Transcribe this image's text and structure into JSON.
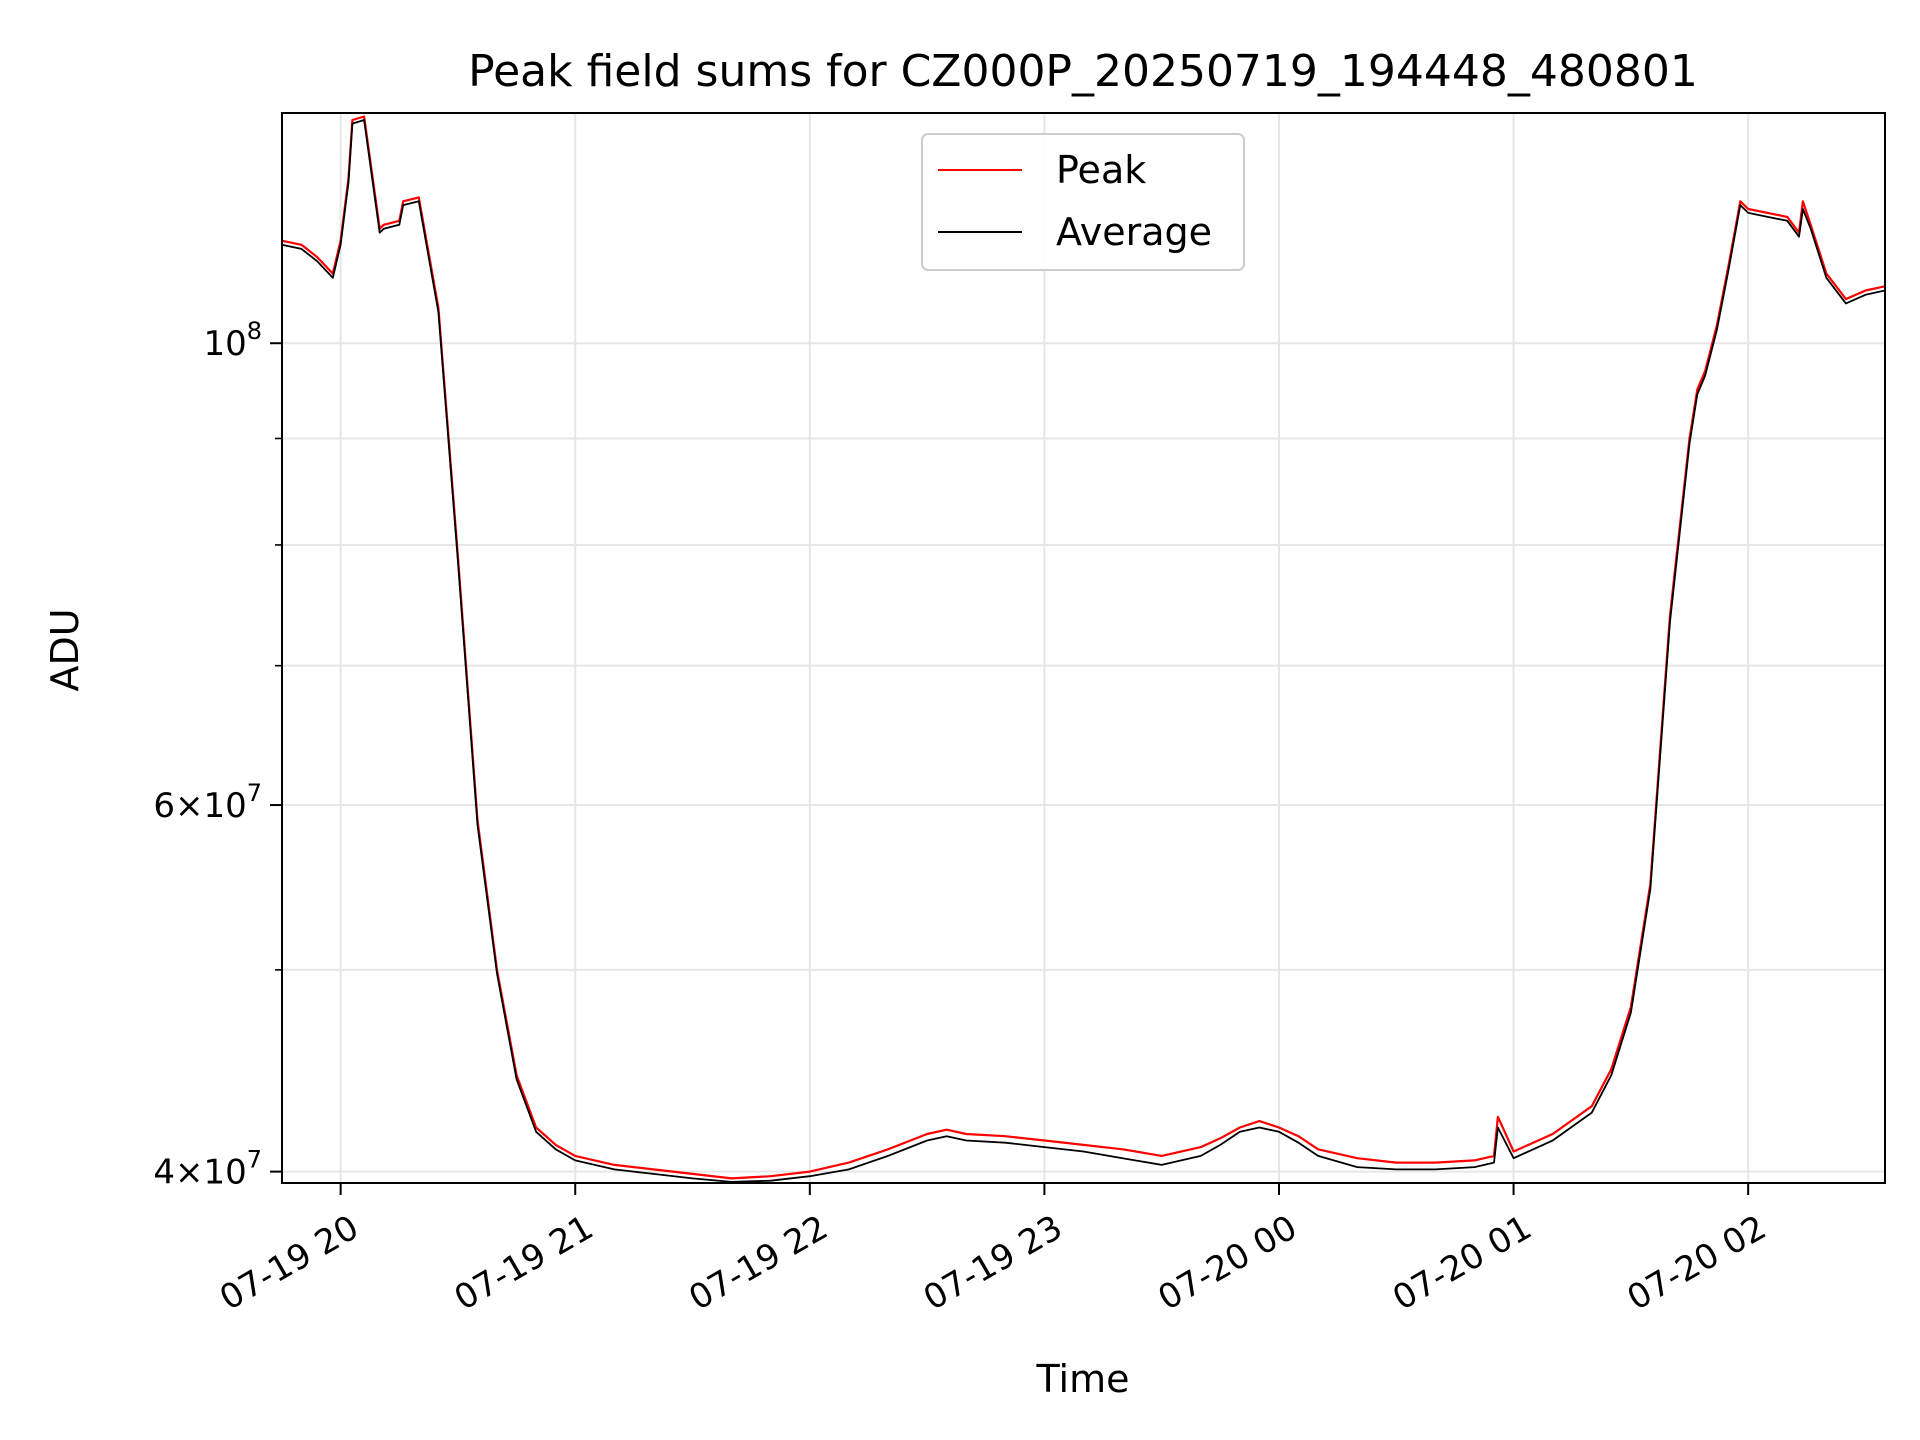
{
  "chart_data": {
    "type": "line",
    "title": "Peak field sums for CZ000P_20250719_194448_480801",
    "xlabel": "Time",
    "ylabel": "ADU",
    "y_scale": "log",
    "xlim": [
      "2025-07-19 19:45",
      "2025-07-20 02:35"
    ],
    "ylim": [
      39500000,
      129000000
    ],
    "grid": true,
    "legend_position": "top-center",
    "x_ticks": [
      {
        "t": "2025-07-19 20:00",
        "label": "07-19 20"
      },
      {
        "t": "2025-07-19 21:00",
        "label": "07-19 21"
      },
      {
        "t": "2025-07-19 22:00",
        "label": "07-19 22"
      },
      {
        "t": "2025-07-19 23:00",
        "label": "07-19 23"
      },
      {
        "t": "2025-07-20 00:00",
        "label": "07-20 00"
      },
      {
        "t": "2025-07-20 01:00",
        "label": "07-20 01"
      },
      {
        "t": "2025-07-20 02:00",
        "label": "07-20 02"
      }
    ],
    "y_major_ticks": [
      {
        "value": 40000000,
        "mant": "4",
        "exp": "7"
      },
      {
        "value": 60000000,
        "mant": "6",
        "exp": "7"
      },
      {
        "value": 100000000,
        "mant": "",
        "exp": "8"
      }
    ],
    "y_minor_ticks": [
      50000000,
      70000000,
      80000000,
      90000000
    ],
    "series": [
      {
        "name": "Peak",
        "color": "#ff0000",
        "x": [
          "2025-07-19 19:45",
          "2025-07-19 19:50",
          "2025-07-19 19:54",
          "2025-07-19 19:58",
          "2025-07-19 20:00",
          "2025-07-19 20:02",
          "2025-07-19 20:03",
          "2025-07-19 20:06",
          "2025-07-19 20:10",
          "2025-07-19 20:11",
          "2025-07-19 20:15",
          "2025-07-19 20:16",
          "2025-07-19 20:20",
          "2025-07-19 20:25",
          "2025-07-19 20:30",
          "2025-07-19 20:35",
          "2025-07-19 20:40",
          "2025-07-19 20:45",
          "2025-07-19 20:50",
          "2025-07-19 20:55",
          "2025-07-19 21:00",
          "2025-07-19 21:10",
          "2025-07-19 21:20",
          "2025-07-19 21:30",
          "2025-07-19 21:40",
          "2025-07-19 21:50",
          "2025-07-19 22:00",
          "2025-07-19 22:10",
          "2025-07-19 22:20",
          "2025-07-19 22:30",
          "2025-07-19 22:35",
          "2025-07-19 22:40",
          "2025-07-19 22:50",
          "2025-07-19 23:00",
          "2025-07-19 23:10",
          "2025-07-19 23:20",
          "2025-07-19 23:30",
          "2025-07-19 23:40",
          "2025-07-19 23:45",
          "2025-07-19 23:50",
          "2025-07-19 23:55",
          "2025-07-20 00:00",
          "2025-07-20 00:05",
          "2025-07-20 00:10",
          "2025-07-20 00:20",
          "2025-07-20 00:30",
          "2025-07-20 00:40",
          "2025-07-20 00:50",
          "2025-07-20 00:55",
          "2025-07-20 00:56",
          "2025-07-20 01:00",
          "2025-07-20 01:10",
          "2025-07-20 01:20",
          "2025-07-20 01:25",
          "2025-07-20 01:30",
          "2025-07-20 01:35",
          "2025-07-20 01:40",
          "2025-07-20 01:45",
          "2025-07-20 01:47",
          "2025-07-20 01:49",
          "2025-07-20 01:52",
          "2025-07-20 01:55",
          "2025-07-20 01:58",
          "2025-07-20 02:00",
          "2025-07-20 02:05",
          "2025-07-20 02:10",
          "2025-07-20 02:13",
          "2025-07-20 02:14",
          "2025-07-20 02:16",
          "2025-07-20 02:20",
          "2025-07-20 02:25",
          "2025-07-20 02:30",
          "2025-07-20 02:35"
        ],
        "values": [
          112000000,
          111500000,
          110000000,
          108000000,
          112000000,
          120000000,
          128000000,
          128500000,
          113500000,
          114000000,
          114500000,
          117000000,
          117500000,
          104000000,
          79000000,
          59000000,
          50000000,
          44500000,
          42000000,
          41200000,
          40700000,
          40300000,
          40100000,
          39900000,
          39700000,
          39800000,
          40000000,
          40400000,
          41000000,
          41700000,
          41900000,
          41700000,
          41600000,
          41400000,
          41200000,
          41000000,
          40700000,
          41100000,
          41500000,
          42000000,
          42300000,
          42000000,
          41600000,
          41000000,
          40600000,
          40400000,
          40400000,
          40500000,
          40700000,
          42500000,
          40900000,
          41700000,
          43000000,
          44800000,
          48000000,
          55000000,
          74000000,
          90000000,
          95000000,
          97000000,
          102000000,
          109000000,
          117000000,
          116000000,
          115500000,
          115000000,
          113000000,
          117000000,
          114000000,
          108000000,
          105000000,
          106000000,
          106500000
        ]
      },
      {
        "name": "Average",
        "color": "#000000",
        "x": [
          "2025-07-19 19:45",
          "2025-07-19 19:50",
          "2025-07-19 19:54",
          "2025-07-19 19:58",
          "2025-07-19 20:00",
          "2025-07-19 20:02",
          "2025-07-19 20:03",
          "2025-07-19 20:06",
          "2025-07-19 20:10",
          "2025-07-19 20:11",
          "2025-07-19 20:15",
          "2025-07-19 20:16",
          "2025-07-19 20:20",
          "2025-07-19 20:25",
          "2025-07-19 20:30",
          "2025-07-19 20:35",
          "2025-07-19 20:40",
          "2025-07-19 20:45",
          "2025-07-19 20:50",
          "2025-07-19 20:55",
          "2025-07-19 21:00",
          "2025-07-19 21:10",
          "2025-07-19 21:20",
          "2025-07-19 21:30",
          "2025-07-19 21:40",
          "2025-07-19 21:50",
          "2025-07-19 22:00",
          "2025-07-19 22:10",
          "2025-07-19 22:20",
          "2025-07-19 22:30",
          "2025-07-19 22:35",
          "2025-07-19 22:40",
          "2025-07-19 22:50",
          "2025-07-19 23:00",
          "2025-07-19 23:10",
          "2025-07-19 23:20",
          "2025-07-19 23:30",
          "2025-07-19 23:40",
          "2025-07-19 23:45",
          "2025-07-19 23:50",
          "2025-07-19 23:55",
          "2025-07-20 00:00",
          "2025-07-20 00:05",
          "2025-07-20 00:10",
          "2025-07-20 00:20",
          "2025-07-20 00:30",
          "2025-07-20 00:40",
          "2025-07-20 00:50",
          "2025-07-20 00:55",
          "2025-07-20 00:56",
          "2025-07-20 01:00",
          "2025-07-20 01:10",
          "2025-07-20 01:20",
          "2025-07-20 01:25",
          "2025-07-20 01:30",
          "2025-07-20 01:35",
          "2025-07-20 01:40",
          "2025-07-20 01:45",
          "2025-07-20 01:47",
          "2025-07-20 01:49",
          "2025-07-20 01:52",
          "2025-07-20 01:55",
          "2025-07-20 01:58",
          "2025-07-20 02:00",
          "2025-07-20 02:05",
          "2025-07-20 02:10",
          "2025-07-20 02:13",
          "2025-07-20 02:14",
          "2025-07-20 02:16",
          "2025-07-20 02:20",
          "2025-07-20 02:25",
          "2025-07-20 02:30",
          "2025-07-20 02:35"
        ],
        "values": [
          111500000,
          111000000,
          109500000,
          107500000,
          111500000,
          119500000,
          127500000,
          128000000,
          113000000,
          113500000,
          114000000,
          116500000,
          117000000,
          103500000,
          78600000,
          58700000,
          49800000,
          44300000,
          41800000,
          41000000,
          40500000,
          40100000,
          39900000,
          39700000,
          39550000,
          39600000,
          39800000,
          40100000,
          40700000,
          41400000,
          41600000,
          41400000,
          41300000,
          41100000,
          40900000,
          40600000,
          40300000,
          40700000,
          41200000,
          41800000,
          42000000,
          41800000,
          41300000,
          40700000,
          40200000,
          40100000,
          40100000,
          40200000,
          40400000,
          42000000,
          40600000,
          41400000,
          42700000,
          44500000,
          47700000,
          54700000,
          73500000,
          89500000,
          94500000,
          96500000,
          101500000,
          108500000,
          116500000,
          115500000,
          115000000,
          114500000,
          112500000,
          116000000,
          113500000,
          107500000,
          104500000,
          105500000,
          106000000
        ]
      }
    ]
  }
}
